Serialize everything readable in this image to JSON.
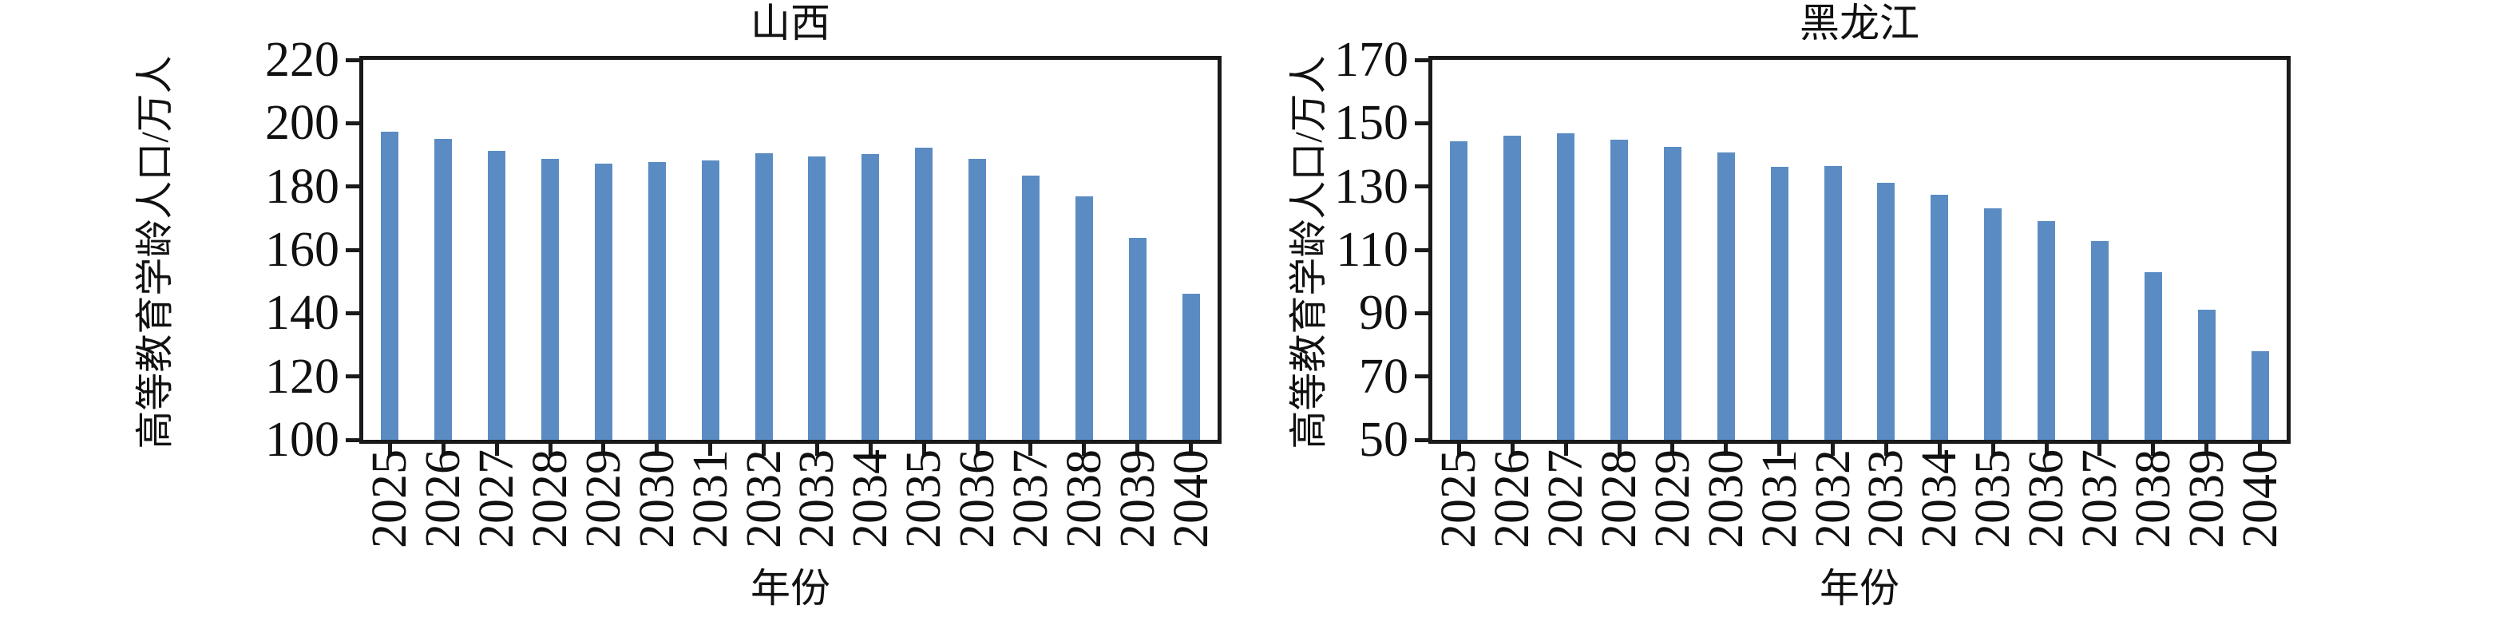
{
  "colors": {
    "bar": "#5A8CC3",
    "axis": "#1a1a1a",
    "text": "#111111"
  },
  "chart_data": [
    {
      "type": "bar",
      "title": "山西",
      "xlabel": "年份",
      "ylabel": "高等教育学龄人口/万人",
      "categories": [
        "2025",
        "2026",
        "2027",
        "2028",
        "2029",
        "2030",
        "2031",
        "2032",
        "2033",
        "2034",
        "2035",
        "2036",
        "2037",
        "2038",
        "2039",
        "2040"
      ],
      "values": [
        197.4,
        195.1,
        191.2,
        188.7,
        187.2,
        187.7,
        188.2,
        190.5,
        189.5,
        190.2,
        192.2,
        188.8,
        183.4,
        176.8,
        163.9,
        146.2
      ],
      "ylim": [
        100,
        220
      ],
      "yticks": [
        220,
        200,
        180,
        160,
        140,
        120,
        100
      ],
      "grid": false,
      "legend": null
    },
    {
      "type": "bar",
      "title": "黑龙江",
      "xlabel": "年份",
      "ylabel": "高等教育学龄人口/万人",
      "categories": [
        "2025",
        "2026",
        "2027",
        "2028",
        "2029",
        "2030",
        "2031",
        "2032",
        "2033",
        "2034",
        "2035",
        "2036",
        "2037",
        "2038",
        "2039",
        "2040"
      ],
      "values": [
        144.2,
        146.0,
        146.9,
        144.8,
        142.5,
        140.7,
        136.2,
        136.4,
        131.3,
        127.5,
        123.1,
        119.2,
        112.8,
        102.9,
        91.2,
        78.1
      ],
      "ylim": [
        50,
        170
      ],
      "yticks": [
        170,
        150,
        130,
        110,
        90,
        70,
        50
      ],
      "grid": false,
      "legend": null
    }
  ]
}
